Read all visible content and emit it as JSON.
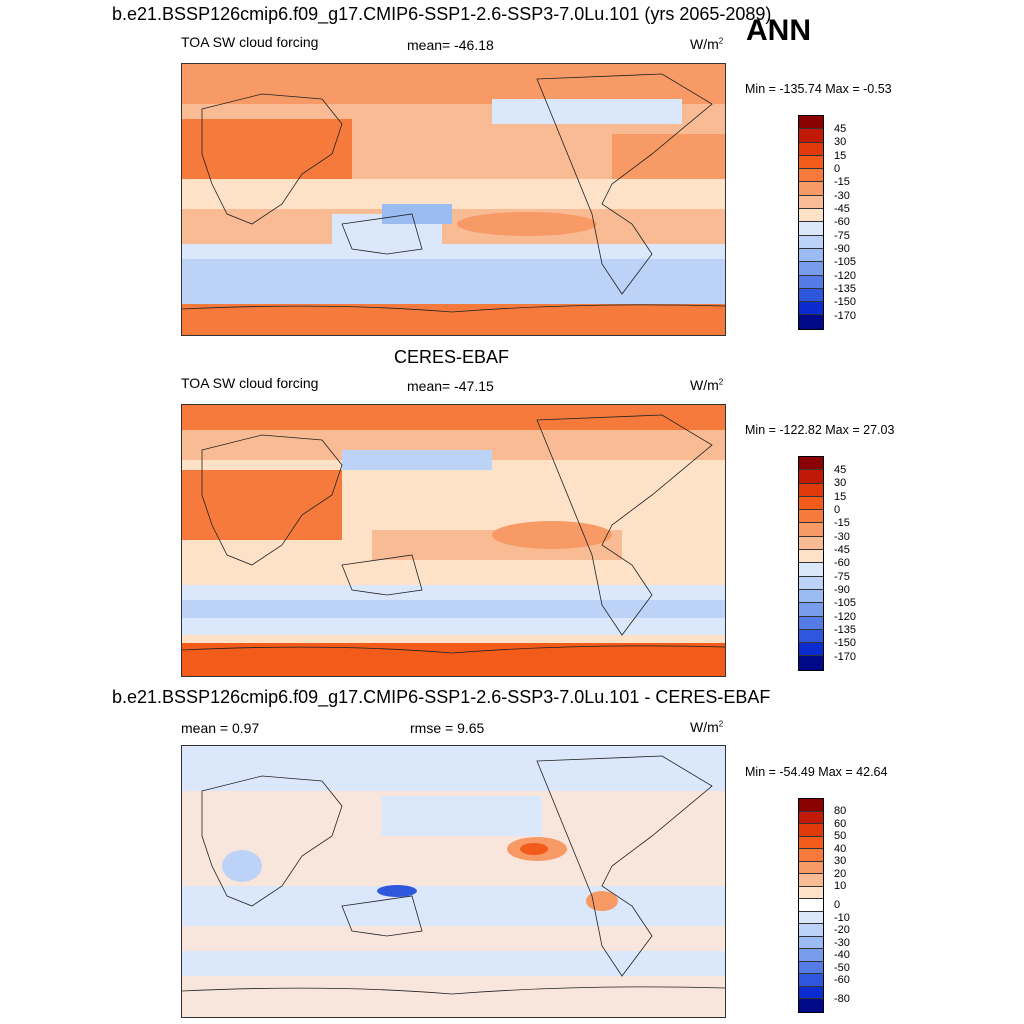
{
  "panel1": {
    "title": "b.e21.BSSP126cmip6.f09_g17.CMIP6-SSP1-2.6-SSP3-7.0Lu.101 (yrs 2065-2089)",
    "season": "ANN",
    "left_label": "TOA SW cloud forcing",
    "center_label": "mean= -46.18",
    "units_base": "W/m",
    "units_exp": "2",
    "minmax": "Min = -135.74 Max =  -0.53",
    "colorbar_ticks": [
      "45",
      "30",
      "15",
      "0",
      "-15",
      "-30",
      "-45",
      "-60",
      "-75",
      "-90",
      "-105",
      "-120",
      "-135",
      "-150",
      "-170"
    ]
  },
  "panel2": {
    "title": "CERES-EBAF",
    "left_label": "TOA SW cloud forcing",
    "center_label": "mean= -47.15",
    "units_base": "W/m",
    "units_exp": "2",
    "minmax": "Min = -122.82 Max =  27.03",
    "colorbar_ticks": [
      "45",
      "30",
      "15",
      "0",
      "-15",
      "-30",
      "-45",
      "-60",
      "-75",
      "-90",
      "-105",
      "-120",
      "-135",
      "-150",
      "-170"
    ]
  },
  "panel3": {
    "title": "b.e21.BSSP126cmip6.f09_g17.CMIP6-SSP1-2.6-SSP3-7.0Lu.101 - CERES-EBAF",
    "left_label": "mean =   0.97",
    "center_label": "rmse =   9.65",
    "units_base": "W/m",
    "units_exp": "2",
    "minmax": "Min = -54.49 Max =  42.64",
    "colorbar_ticks": [
      "80",
      "60",
      "50",
      "40",
      "30",
      "20",
      "10",
      "0",
      "-10",
      "-20",
      "-30",
      "-40",
      "-50",
      "-60",
      "-80"
    ]
  },
  "colors": {
    "abs_scale": [
      "#8b0000",
      "#c01a06",
      "#e03a0a",
      "#f35b1b",
      "#f57a3c",
      "#f79a66",
      "#f8bb94",
      "#fde2c8",
      "#dbe8fb",
      "#bcd3f7",
      "#9bbcf2",
      "#789ded",
      "#557ce6",
      "#2f57de",
      "#0a2bcf",
      "#000a88"
    ],
    "diff_scale": [
      "#8b0000",
      "#c01a06",
      "#e03a0a",
      "#f35b1b",
      "#f57a3c",
      "#f79a66",
      "#f8bb94",
      "#fde2c8",
      "#ffffff",
      "#dbe8fb",
      "#bcd3f7",
      "#9bbcf2",
      "#789ded",
      "#557ce6",
      "#2f57de",
      "#0a2bcf",
      "#000a88"
    ]
  }
}
